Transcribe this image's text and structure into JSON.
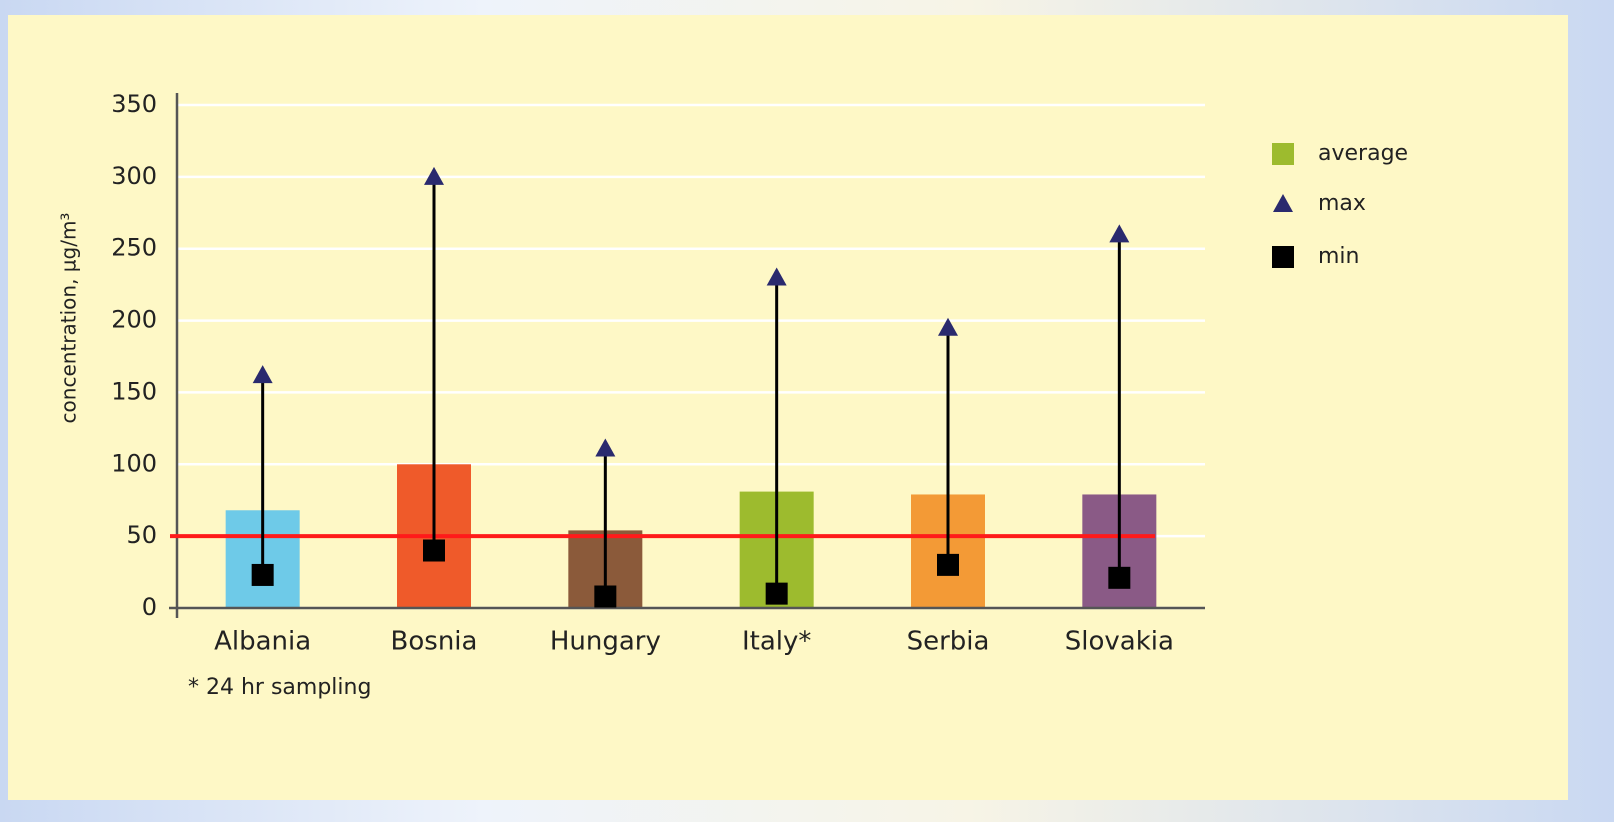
{
  "chart_data": {
    "type": "bar",
    "y_label": "concentration, µg/m³",
    "categories": [
      "Albania",
      "Bosnia",
      "Hungary",
      "Italy*",
      "Serbia",
      "Slovakia"
    ],
    "series": [
      {
        "name": "average",
        "color": "#9dbb2e",
        "colors": [
          "#6ecae8",
          "#ef5a2a",
          "#8b5a3a",
          "#9dbb2e",
          "#f39a36",
          "#8a5a86"
        ],
        "values": [
          68,
          100,
          54,
          81,
          79,
          79
        ]
      },
      {
        "name": "max",
        "color": "#2a2a6e",
        "values": [
          162,
          300,
          111,
          230,
          195,
          260
        ]
      },
      {
        "name": "min",
        "color": "#000000",
        "values": [
          23,
          40,
          8,
          10,
          30,
          21
        ]
      }
    ],
    "reference_line": {
      "value": 50,
      "color": "#ff1a1a"
    },
    "ylim": [
      0,
      350
    ],
    "yticks": [
      0,
      50,
      100,
      150,
      200,
      250,
      300,
      350
    ],
    "grid": true,
    "legend": "right",
    "footnote": "*   24 hr sampling"
  }
}
